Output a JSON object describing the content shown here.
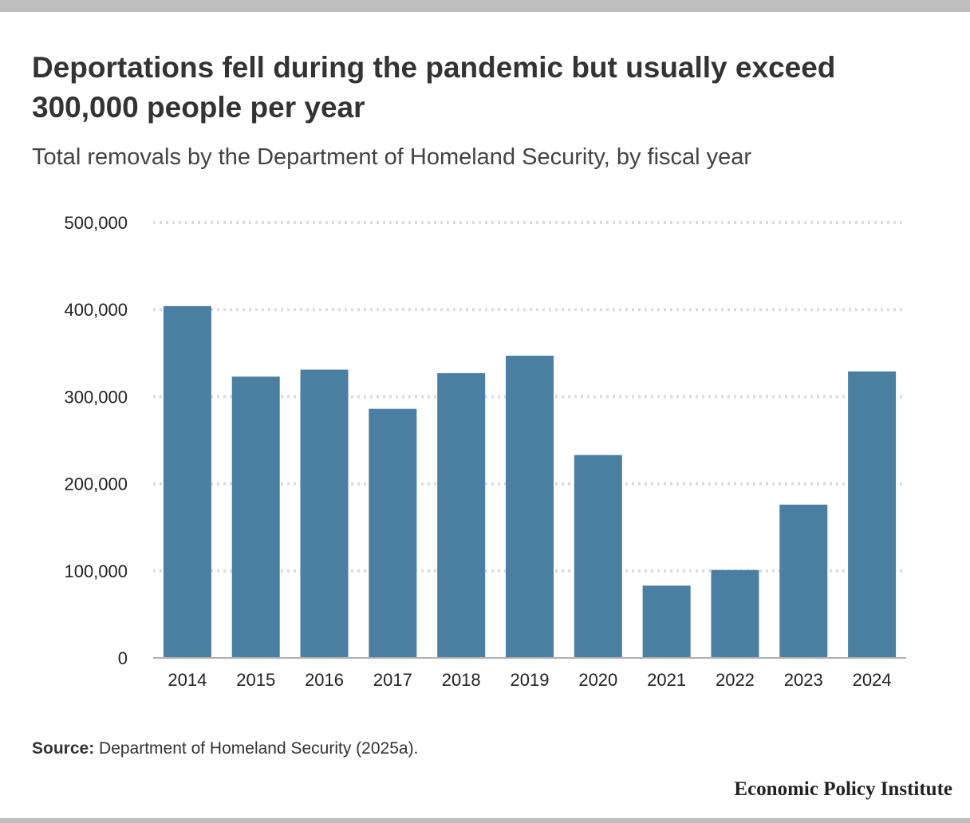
{
  "header": {
    "title": "Deportations fell during the pandemic but usually exceed 300,000 people per year",
    "subtitle": "Total removals by the Department of Homeland Security, by fiscal year"
  },
  "footer": {
    "source_label": "Source:",
    "source_text": "Department of Homeland Security (2025a).",
    "brand": "Economic Policy Institute"
  },
  "chart_data": {
    "type": "bar",
    "categories": [
      "2014",
      "2015",
      "2016",
      "2017",
      "2018",
      "2019",
      "2020",
      "2021",
      "2022",
      "2023",
      "2024"
    ],
    "values": [
      404000,
      323000,
      331000,
      286000,
      327000,
      347000,
      233000,
      83000,
      101000,
      176000,
      329000
    ],
    "yticks": [
      0,
      100000,
      200000,
      300000,
      400000,
      500000
    ],
    "ytick_labels": [
      "0",
      "100,000",
      "200,000",
      "300,000",
      "400,000",
      "500,000"
    ],
    "ylim": [
      0,
      500000
    ],
    "xlabel": "",
    "ylabel": "",
    "grid": true,
    "bar_color": "#4a7fa2",
    "grid_color": "#dcdcdc"
  }
}
